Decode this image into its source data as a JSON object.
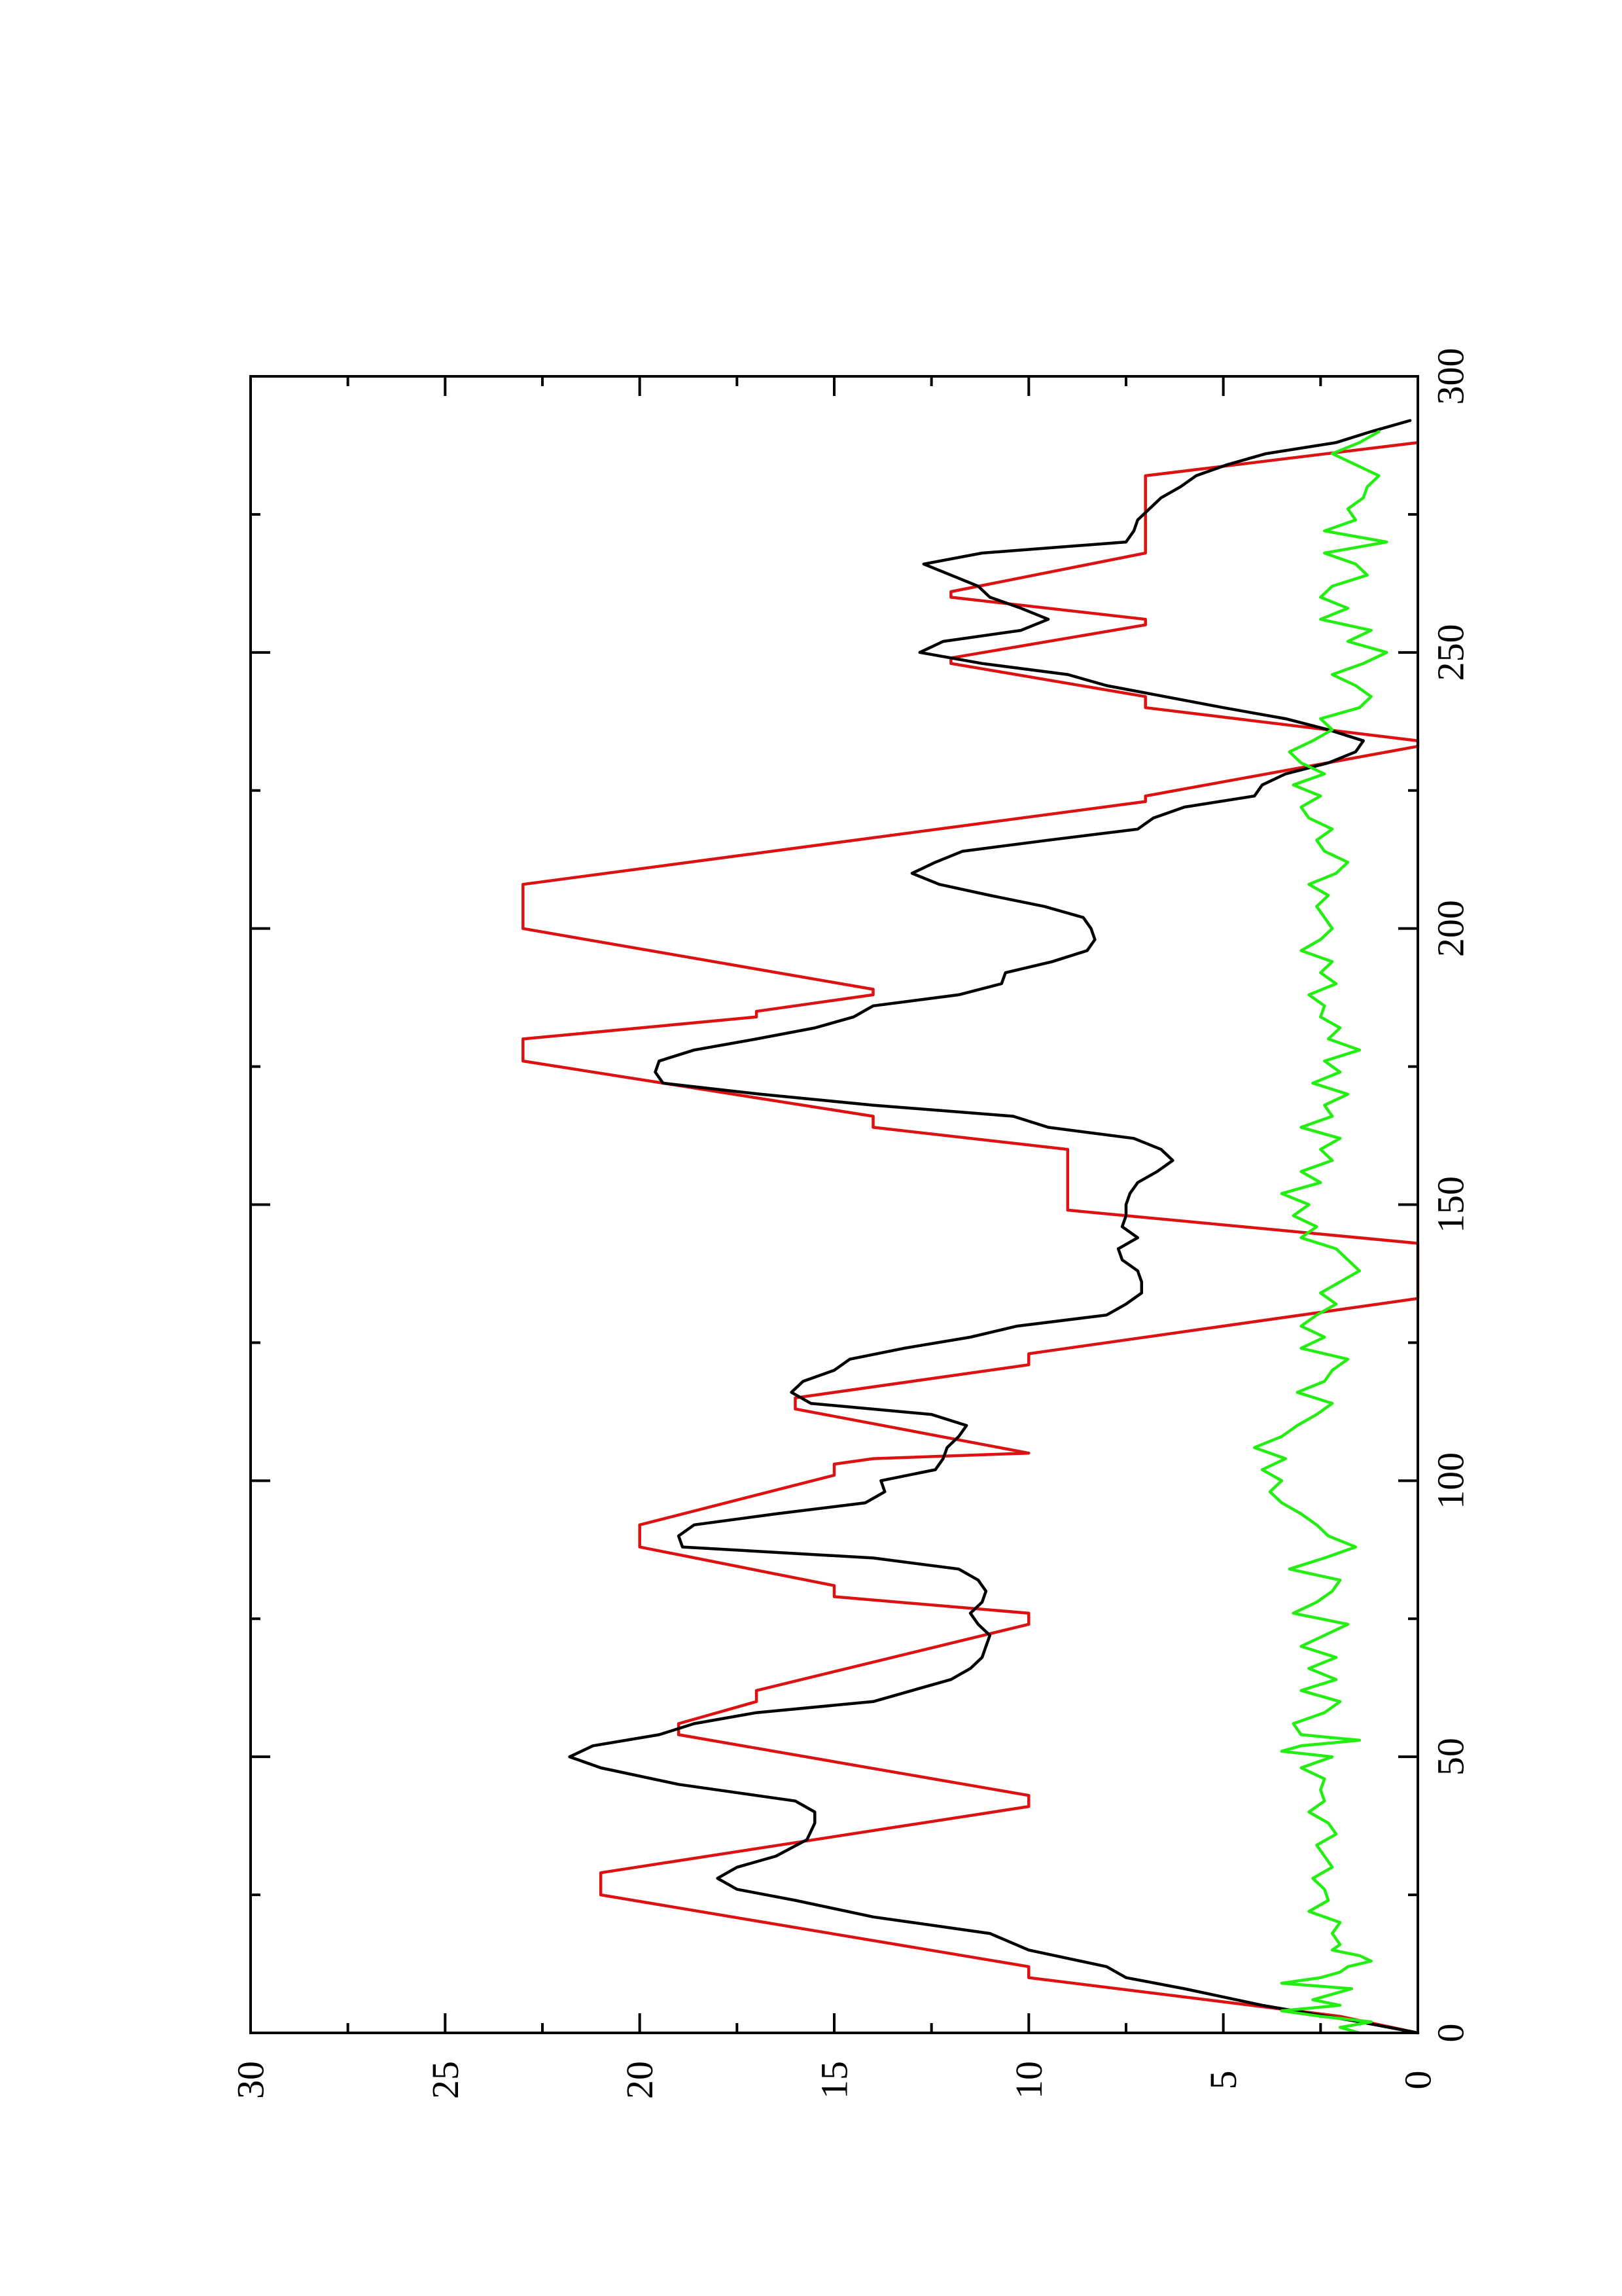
{
  "chart_data": {
    "type": "line",
    "title": "",
    "xlabel": "",
    "ylabel": "",
    "orientation": "rotated-90-clockwise",
    "xlim": [
      0,
      300
    ],
    "ylim": [
      0,
      30
    ],
    "grid": false,
    "legend": "none",
    "x_ticks": [
      "0",
      "50",
      "100",
      "150",
      "200",
      "250",
      "300"
    ],
    "y_ticks": [
      "0",
      "5",
      "10",
      "15",
      "20",
      "25",
      "30"
    ],
    "series": [
      {
        "color": "#dd1111",
        "x": [
          0,
          3,
          10,
          12,
          25,
          29,
          41,
          43,
          54,
          56,
          60,
          62,
          74,
          76,
          79,
          81,
          88,
          92,
          101,
          103,
          104,
          105,
          113,
          114,
          115,
          121,
          123,
          133,
          134,
          142,
          143,
          149,
          151,
          158,
          160,
          164,
          166,
          176,
          180,
          184,
          185,
          188,
          189,
          200,
          207,
          208,
          223,
          224,
          233,
          234,
          240,
          242,
          248,
          249,
          255,
          256,
          260,
          261,
          268,
          270,
          280,
          282,
          288
        ],
        "y": [
          0,
          2,
          10,
          10,
          21,
          21,
          10,
          10,
          19,
          19,
          17,
          17,
          10,
          10,
          15,
          15,
          20,
          20,
          15,
          15,
          14,
          10,
          16,
          16,
          16,
          10,
          10,
          0,
          0,
          0,
          0,
          9,
          9,
          9,
          9,
          14,
          14,
          23,
          23,
          17,
          17,
          14,
          14,
          23,
          23,
          23,
          7,
          7,
          0,
          0,
          7,
          7,
          12,
          12,
          7,
          7,
          12,
          12,
          7,
          7,
          7,
          7,
          0
        ]
      },
      {
        "color": "#000000",
        "x": [
          0,
          2,
          5,
          8,
          10,
          12,
          15,
          18,
          21,
          24,
          26,
          28,
          30,
          32,
          35,
          38,
          40,
          42,
          45,
          48,
          50,
          52,
          54,
          56,
          58,
          60,
          62,
          64,
          66,
          68,
          70,
          72,
          74,
          76,
          78,
          80,
          82,
          84,
          86,
          88,
          90,
          92,
          94,
          96,
          98,
          100,
          102,
          104,
          106,
          108,
          110,
          112,
          114,
          116,
          118,
          120,
          122,
          124,
          126,
          128,
          130,
          132,
          134,
          136,
          138,
          140,
          142,
          144,
          146,
          148,
          150,
          152,
          154,
          156,
          158,
          160,
          162,
          164,
          166,
          168,
          170,
          172,
          174,
          176,
          178,
          180,
          182,
          184,
          186,
          188,
          190,
          192,
          194,
          196,
          198,
          200,
          202,
          204,
          206,
          208,
          210,
          212,
          214,
          216,
          218,
          220,
          222,
          224,
          226,
          228,
          230,
          232,
          234,
          236,
          238,
          240,
          242,
          244,
          246,
          248,
          250,
          252,
          254,
          256,
          258,
          260,
          262,
          264,
          266,
          268,
          270,
          272,
          274,
          276,
          278,
          280,
          282,
          284,
          286,
          288,
          290,
          292
        ],
        "y": [
          0,
          1.5,
          4,
          6,
          7.5,
          8,
          10,
          11,
          14,
          16,
          17.5,
          18,
          17.5,
          16.5,
          15.7,
          15.5,
          15.5,
          16,
          19,
          21,
          21.8,
          21.2,
          19.5,
          18.6,
          17,
          14,
          13,
          12,
          11.5,
          11.2,
          11.1,
          11,
          11.3,
          11.5,
          11.2,
          11.1,
          11.3,
          11.8,
          14,
          18.9,
          19,
          18.6,
          16.5,
          14.2,
          13.7,
          13.8,
          12.4,
          12.2,
          12.1,
          11.8,
          11.6,
          12.5,
          15.6,
          16.1,
          15.8,
          15,
          14.6,
          13.2,
          11.5,
          10.3,
          8,
          7.5,
          7.1,
          7.1,
          7.2,
          7.6,
          7.7,
          7.2,
          7.6,
          7.5,
          7.5,
          7.4,
          7.2,
          6.7,
          6.3,
          6.6,
          7.3,
          9.5,
          10.4,
          14,
          16.9,
          19.4,
          19.6,
          19.5,
          18.6,
          17,
          15.5,
          14.5,
          14,
          11.8,
          10.7,
          10.6,
          9.4,
          8.5,
          8.3,
          8.4,
          8.6,
          9.6,
          11,
          12.3,
          13,
          12.4,
          11.7,
          9.5,
          7.2,
          6.8,
          6,
          4.2,
          4,
          3.4,
          2.3,
          1.6,
          1.4,
          2.3,
          3.4,
          5,
          6.5,
          8,
          9,
          11.2,
          12.8,
          12.2,
          10.2,
          9.5,
          10.2,
          11,
          11.3,
          12,
          12.7,
          11.2,
          7.5,
          7.3,
          7.2,
          6.9,
          6.6,
          6.1,
          5.7,
          4.9,
          3.9,
          2.1,
          1.2,
          0.2
        ]
      },
      {
        "color": "#22ee11",
        "x": [
          0,
          1,
          2,
          3,
          4,
          5,
          6,
          7,
          8,
          9,
          10,
          11,
          12,
          13,
          14,
          15,
          16,
          18,
          20,
          22,
          24,
          26,
          28,
          30,
          32,
          34,
          36,
          38,
          40,
          42,
          44,
          46,
          48,
          50,
          51,
          52,
          53,
          54,
          56,
          58,
          60,
          62,
          64,
          66,
          68,
          70,
          72,
          74,
          76,
          78,
          80,
          82,
          84,
          86,
          88,
          90,
          92,
          94,
          96,
          98,
          100,
          102,
          104,
          106,
          108,
          110,
          112,
          114,
          116,
          118,
          120,
          122,
          124,
          126,
          128,
          130,
          132,
          134,
          136,
          138,
          140,
          142,
          144,
          146,
          148,
          150,
          152,
          154,
          156,
          158,
          160,
          162,
          164,
          166,
          168,
          170,
          172,
          174,
          176,
          178,
          180,
          182,
          184,
          186,
          188,
          190,
          192,
          194,
          196,
          198,
          200,
          202,
          204,
          206,
          208,
          210,
          212,
          214,
          216,
          218,
          220,
          222,
          224,
          226,
          228,
          230,
          232,
          234,
          236,
          238,
          240,
          242,
          244,
          246,
          248,
          250,
          252,
          254,
          256,
          258,
          260,
          262,
          264,
          266,
          268,
          270,
          272,
          274,
          276,
          278,
          280,
          282,
          284,
          286,
          288,
          290
        ],
        "y": [
          1.5,
          2,
          1.2,
          2.5,
          3.5,
          2,
          2.7,
          2.2,
          1.7,
          3.5,
          2.5,
          2,
          1.8,
          1.2,
          1.5,
          2.2,
          2,
          2.2,
          2,
          2.8,
          2.3,
          2.4,
          2.7,
          2.2,
          2.4,
          2.6,
          2.1,
          2.3,
          2.8,
          2.4,
          2.5,
          2.4,
          3,
          2.2,
          3.5,
          3,
          1.5,
          3,
          3.2,
          2.4,
          2,
          3,
          2.1,
          2.8,
          2.1,
          3,
          2.4,
          1.8,
          3.2,
          2.6,
          2.2,
          2,
          3.3,
          2.4,
          1.6,
          2.3,
          2.6,
          3,
          3.5,
          3.8,
          3.5,
          4,
          3.4,
          4.2,
          3.5,
          3.1,
          2.6,
          2.2,
          3.1,
          2.4,
          2.2,
          1.8,
          3,
          2.4,
          3,
          2.6,
          2.1,
          2.5,
          2,
          1.5,
          1.8,
          2.1,
          3,
          2.6,
          3.2,
          2.8,
          3.5,
          2.5,
          3,
          2.2,
          2.5,
          2,
          3,
          2.2,
          2.4,
          1.8,
          2.7,
          2,
          2.4,
          1.5,
          2.3,
          2,
          2.5,
          2.4,
          2.8,
          2.1,
          2.5,
          2.2,
          3,
          2.5,
          2.2,
          2.4,
          2.6,
          2.3,
          2.8,
          2.1,
          1.8,
          2.4,
          2.6,
          2.2,
          2.8,
          3,
          2.5,
          3.2,
          2.4,
          3,
          3.3,
          2.7,
          2.2,
          2.5,
          1.5,
          1.2,
          1.6,
          2.2,
          1.4,
          0.8,
          1.8,
          1.2,
          2.5,
          1.8,
          2.5,
          2.2,
          1.3,
          1.6,
          2.4,
          0.8,
          2.4,
          1.6,
          1.8,
          1.4,
          1.3,
          1,
          1.6,
          2.2,
          1.5,
          1
        ]
      }
    ]
  }
}
